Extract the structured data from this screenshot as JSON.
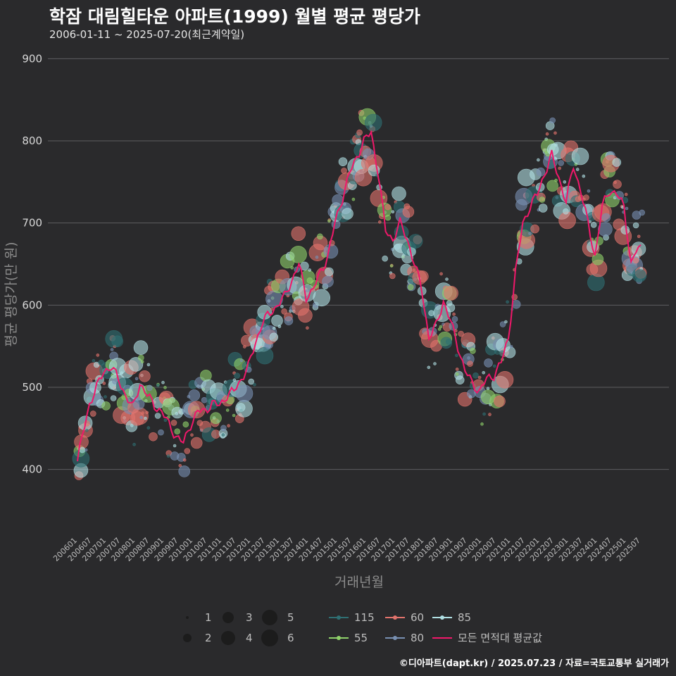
{
  "title": "학잠 대림힐타운 아파트(1999) 월별 평균 평당가",
  "subtitle": "2006-01-11 ~ 2025-07-20(최근계약일)",
  "credit": "©디아파트(dapt.kr) / 2025.07.23 / 자료=국토교통부 실거래가",
  "chart_data": {
    "type": "scatter",
    "title": "학잠 대림힐타운 아파트(1999) 월별 평균 평당가",
    "xlabel": "거래년월",
    "ylabel": "평균 평당가(만 원)",
    "ylim": [
      320,
      920
    ],
    "yticks": [
      400,
      500,
      600,
      700,
      800,
      900
    ],
    "x_start": "2006-01",
    "x_end": "2025-07",
    "xtick_labels": [
      "200601",
      "200607",
      "200701",
      "200707",
      "200801",
      "200807",
      "200901",
      "200907",
      "201001",
      "201007",
      "201101",
      "201107",
      "201201",
      "201207",
      "201301",
      "201307",
      "201401",
      "201407",
      "201501",
      "201507",
      "201601",
      "201607",
      "201701",
      "201707",
      "201801",
      "201807",
      "201901",
      "201907",
      "202001",
      "202007",
      "202101",
      "202107",
      "202201",
      "202207",
      "202301",
      "202307",
      "202401",
      "202407",
      "202501",
      "202507"
    ],
    "size_legend": {
      "title": "",
      "labels": [
        "1",
        "2",
        "3",
        "4",
        "5",
        "6"
      ]
    },
    "series_legend": [
      {
        "name": "115",
        "color": "#2f6f73"
      },
      {
        "name": "55",
        "color": "#8fd16a"
      },
      {
        "name": "60",
        "color": "#e2736c"
      },
      {
        "name": "80",
        "color": "#7890b2"
      },
      {
        "name": "85",
        "color": "#b0dfe3"
      },
      {
        "name": "모든 면적대 평균값",
        "color": "#f0186a"
      }
    ],
    "trend_anchors": {
      "name": "모든 면적대 평균값",
      "color": "#f0186a",
      "points": [
        [
          "2006-01",
          410
        ],
        [
          "2006-03",
          440
        ],
        [
          "2006-06",
          480
        ],
        [
          "2006-09",
          500
        ],
        [
          "2006-12",
          520
        ],
        [
          "2007-03",
          525
        ],
        [
          "2007-06",
          510
        ],
        [
          "2007-09",
          490
        ],
        [
          "2007-12",
          475
        ],
        [
          "2008-03",
          505
        ],
        [
          "2008-06",
          490
        ],
        [
          "2008-09",
          478
        ],
        [
          "2008-12",
          470
        ],
        [
          "2009-03",
          455
        ],
        [
          "2009-06",
          440
        ],
        [
          "2009-09",
          432
        ],
        [
          "2009-12",
          455
        ],
        [
          "2010-03",
          470
        ],
        [
          "2010-06",
          472
        ],
        [
          "2010-09",
          480
        ],
        [
          "2010-12",
          478
        ],
        [
          "2011-03",
          490
        ],
        [
          "2011-06",
          495
        ],
        [
          "2011-09",
          510
        ],
        [
          "2011-12",
          525
        ],
        [
          "2012-03",
          555
        ],
        [
          "2012-06",
          580
        ],
        [
          "2012-09",
          590
        ],
        [
          "2012-12",
          600
        ],
        [
          "2013-03",
          610
        ],
        [
          "2013-06",
          630
        ],
        [
          "2013-09",
          650
        ],
        [
          "2013-12",
          610
        ],
        [
          "2014-03",
          620
        ],
        [
          "2014-06",
          640
        ],
        [
          "2014-09",
          660
        ],
        [
          "2014-12",
          700
        ],
        [
          "2015-03",
          730
        ],
        [
          "2015-06",
          760
        ],
        [
          "2015-09",
          780
        ],
        [
          "2015-12",
          800
        ],
        [
          "2016-03",
          810
        ],
        [
          "2016-06",
          760
        ],
        [
          "2016-09",
          690
        ],
        [
          "2016-12",
          680
        ],
        [
          "2017-03",
          700
        ],
        [
          "2017-06",
          680
        ],
        [
          "2017-09",
          650
        ],
        [
          "2017-12",
          620
        ],
        [
          "2018-03",
          560
        ],
        [
          "2018-06",
          575
        ],
        [
          "2018-09",
          605
        ],
        [
          "2018-12",
          580
        ],
        [
          "2019-03",
          550
        ],
        [
          "2019-06",
          520
        ],
        [
          "2019-09",
          505
        ],
        [
          "2019-12",
          495
        ],
        [
          "2020-03",
          510
        ],
        [
          "2020-06",
          515
        ],
        [
          "2020-09",
          530
        ],
        [
          "2020-12",
          560
        ],
        [
          "2021-03",
          640
        ],
        [
          "2021-06",
          700
        ],
        [
          "2021-09",
          720
        ],
        [
          "2021-12",
          735
        ],
        [
          "2022-03",
          760
        ],
        [
          "2022-06",
          782
        ],
        [
          "2022-09",
          755
        ],
        [
          "2022-12",
          725
        ],
        [
          "2023-03",
          770
        ],
        [
          "2023-06",
          740
        ],
        [
          "2023-09",
          700
        ],
        [
          "2023-12",
          660
        ],
        [
          "2024-03",
          720
        ],
        [
          "2024-06",
          740
        ],
        [
          "2024-09",
          735
        ],
        [
          "2024-12",
          720
        ],
        [
          "2025-03",
          650
        ],
        [
          "2025-05",
          665
        ],
        [
          "2025-07",
          670
        ]
      ]
    },
    "scatter_note": "One point per area group per month; values jitter around the monthly average shown by the trend line; point size = number of transactions (1-6)."
  }
}
